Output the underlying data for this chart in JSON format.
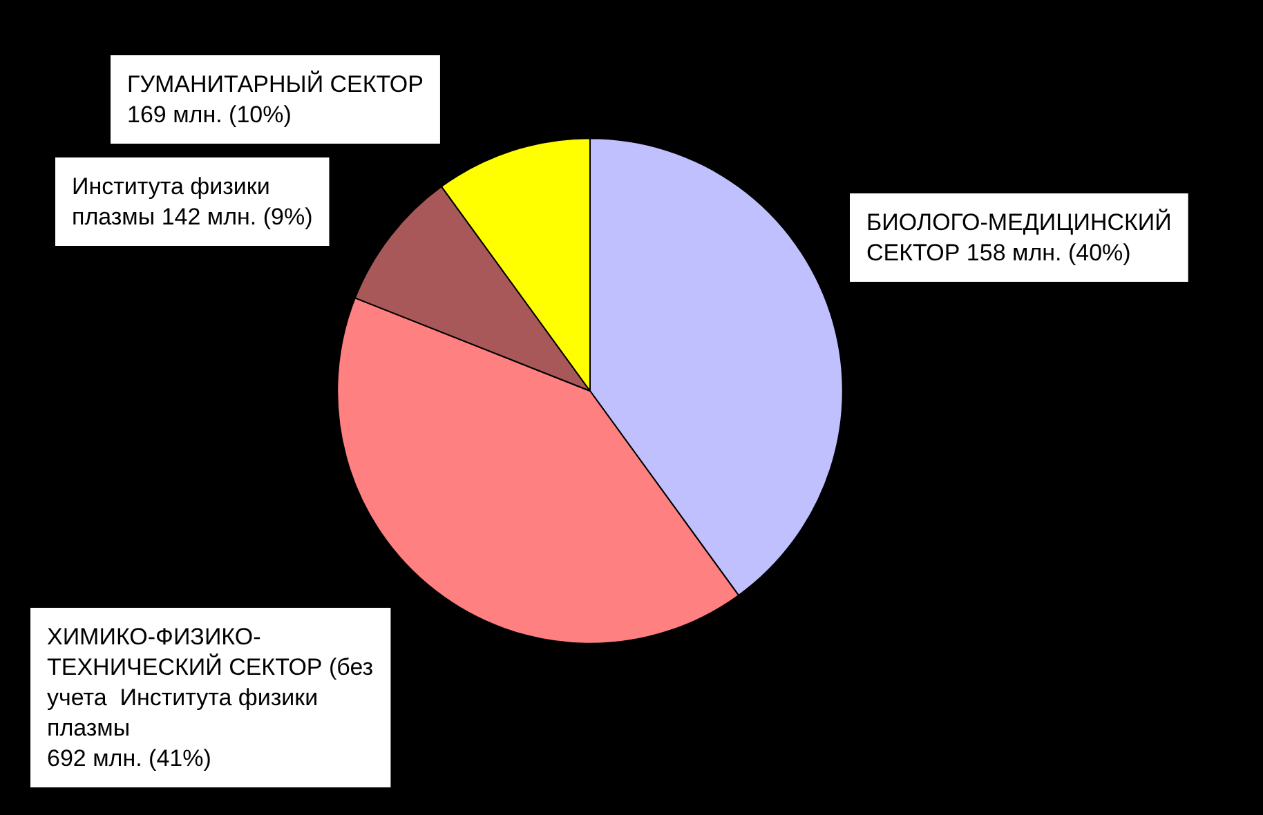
{
  "chart_data": {
    "type": "pie",
    "categories": [
      "БИОЛОГО-МЕДИЦИНСКИЙ\nСЕКТОР 158 млн. (40%)",
      "ХИМИКО-ФИЗИКО-\nТЕХНИЧЕСКИЙ СЕКТОР (без\nучета  Института физики\nплазмы\n692 млн. (41%)",
      "Института физики\nплазмы 142 млн. (9%)",
      "ГУМАНИТАРНЫЙ СЕКТОР\n169 млн. (10%)"
    ],
    "values": [
      40,
      41,
      9,
      10
    ],
    "colors": [
      "#c0c0ff",
      "#ff8080",
      "#a85858",
      "#ffff00"
    ],
    "legend": false
  }
}
